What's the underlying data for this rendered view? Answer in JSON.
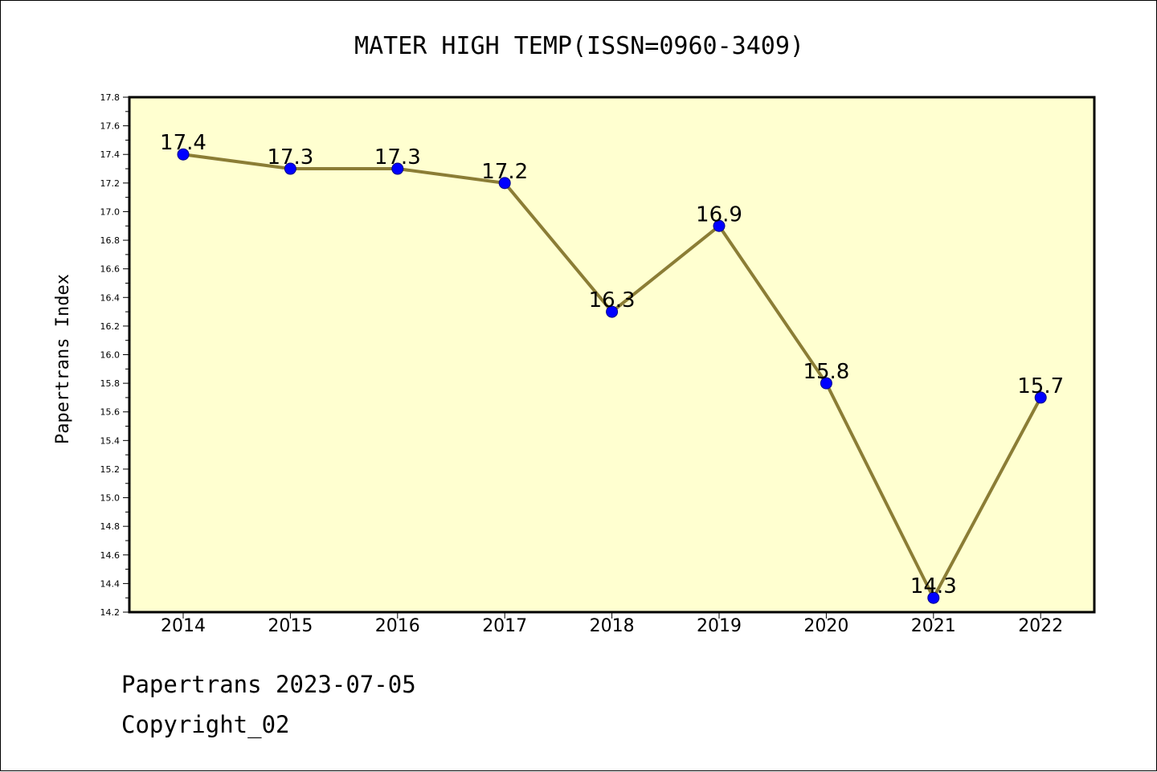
{
  "chart_data": {
    "type": "line",
    "title": "MATER HIGH TEMP(ISSN=0960-3409)",
    "xlabel": "",
    "ylabel": "Papertrans Index",
    "categories": [
      "2014",
      "2015",
      "2016",
      "2017",
      "2018",
      "2019",
      "2020",
      "2021",
      "2022"
    ],
    "values": [
      17.4,
      17.3,
      17.3,
      17.2,
      16.3,
      16.9,
      15.8,
      14.3,
      15.7
    ],
    "data_labels": [
      "17.4",
      "17.3",
      "17.3",
      "17.2",
      "16.3",
      "16.9",
      "15.8",
      "14.3",
      "15.7"
    ],
    "ylim": [
      14.2,
      17.8
    ],
    "yticks": [
      "14.2",
      "14.4",
      "14.6",
      "14.8",
      "15.0",
      "15.2",
      "15.4",
      "15.6",
      "15.8",
      "16.0",
      "16.2",
      "16.4",
      "16.6",
      "16.8",
      "17.0",
      "17.2",
      "17.4",
      "17.6",
      "17.8"
    ],
    "grid": false,
    "colors": {
      "plot_background": "#ffffd0",
      "line": "#8b7d35",
      "marker": "#0000ff"
    }
  },
  "footer": {
    "line1": "Papertrans 2023-07-05",
    "line2": "Copyright_02"
  }
}
